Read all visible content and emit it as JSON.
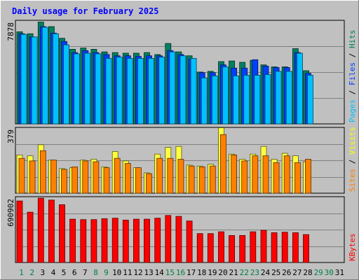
{
  "chart_data": {
    "type": "bar",
    "title": "Daily usage for February 2025",
    "categories": [
      "1",
      "2",
      "3",
      "4",
      "5",
      "6",
      "7",
      "8",
      "9",
      "10",
      "11",
      "12",
      "13",
      "14",
      "15",
      "16",
      "17",
      "18",
      "19",
      "20",
      "21",
      "22",
      "23",
      "24",
      "25",
      "26",
      "27",
      "28",
      "29",
      "30",
      "31"
    ],
    "category_colors": [
      "#008040",
      "#008040",
      "#000000",
      "#000000",
      "#000000",
      "#000000",
      "#000000",
      "#008040",
      "#008040",
      "#000000",
      "#000000",
      "#000000",
      "#000000",
      "#000000",
      "#008040",
      "#008040",
      "#000000",
      "#000000",
      "#000000",
      "#000000",
      "#000000",
      "#008040",
      "#008040",
      "#000000",
      "#000000",
      "#000000",
      "#000000",
      "#000000",
      "#008040",
      "#008040",
      "#000000"
    ],
    "panels": [
      {
        "ymax_label": "7878",
        "ymax": 7878,
        "axis_labels": [
          {
            "text": "Pages",
            "color": "#00c0ff"
          },
          {
            "text": " / ",
            "color": "#000000"
          },
          {
            "text": "Files",
            "color": "#0040ff"
          },
          {
            "text": " / ",
            "color": "#000000"
          },
          {
            "text": "Hits",
            "color": "#008060"
          }
        ],
        "series": [
          {
            "name": "Hits",
            "color": "#008060",
            "values": [
              7100,
              6950,
              7850,
              7500,
              6600,
              5750,
              5850,
              5750,
              5550,
              5500,
              5450,
              5450,
              5500,
              5350,
              6200,
              5550,
              5250,
              4000,
              4050,
              4800,
              4850,
              4750,
              4900,
              4550,
              4400,
              4400,
              5800,
              4100,
              null,
              null,
              null
            ]
          },
          {
            "name": "Files",
            "color": "#0040ff",
            "values": [
              6950,
              6700,
              7500,
              7000,
              6350,
              5500,
              5650,
              5500,
              5350,
              5250,
              5250,
              5200,
              5250,
              5250,
              5650,
              5350,
              5000,
              3950,
              3950,
              4550,
              4300,
              4300,
              4950,
              4450,
              4350,
              4350,
              5500,
              3900,
              null,
              null,
              null
            ]
          },
          {
            "name": "Pages",
            "color": "#00c0ff",
            "values": [
              6900,
              6700,
              7450,
              6950,
              6100,
              5400,
              5450,
              5400,
              5050,
              5150,
              5050,
              5050,
              5050,
              5150,
              5550,
              5250,
              5050,
              3550,
              3700,
              4400,
              3700,
              3750,
              3750,
              3800,
              4050,
              4050,
              5450,
              3750,
              null,
              null,
              null
            ]
          }
        ]
      },
      {
        "ymax_label": "379",
        "ymax": 379,
        "axis_labels": [
          {
            "text": "Sites",
            "color": "#ff8000"
          },
          {
            "text": " / ",
            "color": "#000000"
          },
          {
            "text": "Visits",
            "color": "#ffff00"
          }
        ],
        "series": [
          {
            "name": "Visits",
            "color": "#ffff40",
            "values": [
              225,
              220,
              285,
              195,
              145,
              150,
              195,
              200,
              155,
              245,
              190,
              150,
              120,
              230,
              270,
              275,
              165,
              160,
              170,
              385,
              230,
              200,
              230,
              275,
              200,
              235,
              220,
              185,
              null,
              null,
              null
            ]
          },
          {
            "name": "Sites",
            "color": "#ff8000",
            "values": [
              205,
              190,
              250,
              195,
              140,
              155,
              190,
              185,
              150,
              205,
              175,
              150,
              115,
              205,
              205,
              200,
              160,
              155,
              160,
              345,
              225,
              190,
              220,
              220,
              180,
              220,
              180,
              200,
              null,
              null,
              null
            ]
          }
        ]
      },
      {
        "ymax_label": "690902",
        "ymax": 690902,
        "axis_labels": [
          {
            "text": "KBytes",
            "color": "#ff0000"
          }
        ],
        "series": [
          {
            "name": "KBytes",
            "color": "#ff0000",
            "values": [
              660000,
              540000,
              690000,
              670000,
              620000,
              465000,
              460000,
              460000,
              470000,
              475000,
              455000,
              465000,
              465000,
              475000,
              505000,
              495000,
              445000,
              310000,
              310000,
              330000,
              290000,
              290000,
              330000,
              345000,
              320000,
              325000,
              320000,
              300000,
              null,
              null,
              null
            ]
          }
        ]
      }
    ]
  }
}
